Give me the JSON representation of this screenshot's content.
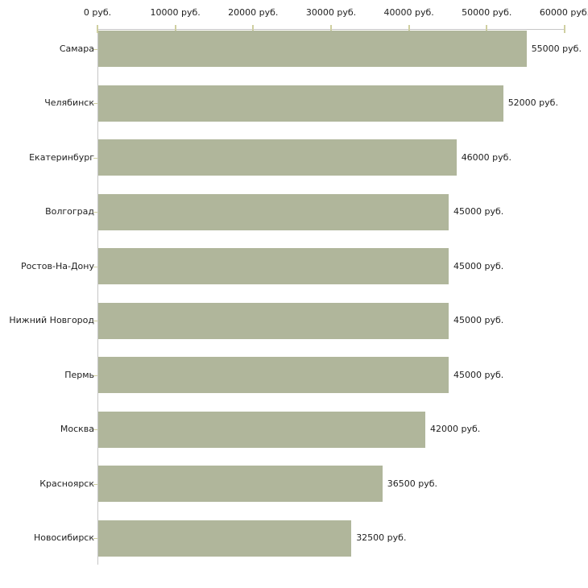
{
  "chart_data": {
    "type": "bar",
    "orientation": "horizontal",
    "title": "",
    "xlabel": "",
    "ylabel": "",
    "unit": "руб.",
    "categories": [
      "Самара",
      "Челябинск",
      "Екатеринбург",
      "Волгоград",
      "Ростов-На-Дону",
      "Нижний Новгород",
      "Пермь",
      "Москва",
      "Красноярск",
      "Новосибирск"
    ],
    "values": [
      55000,
      52000,
      46000,
      45000,
      45000,
      45000,
      45000,
      42000,
      36500,
      32500
    ],
    "value_labels": [
      "55000 руб.",
      "52000 руб.",
      "46000 руб.",
      "45000 руб.",
      "45000 руб.",
      "45000 руб.",
      "45000 руб.",
      "42000 руб.",
      "36500 руб.",
      "32500 руб."
    ],
    "x_tick_values": [
      0,
      10000,
      20000,
      30000,
      40000,
      50000,
      60000
    ],
    "x_tick_labels": [
      "0 руб.",
      "10000 руб.",
      "20000 руб.",
      "30000 руб.",
      "40000 руб.",
      "50000 руб.",
      "60000 руб."
    ],
    "xlim": [
      0,
      60000
    ],
    "tick_position": "top",
    "grid": false,
    "legend": null,
    "colors": {
      "bar": "#b0b69b",
      "axis_line": "#c6c6c6",
      "tick_mark": "#cfcfa0",
      "text": "#1e1e1e",
      "background": "#ffffff"
    }
  }
}
